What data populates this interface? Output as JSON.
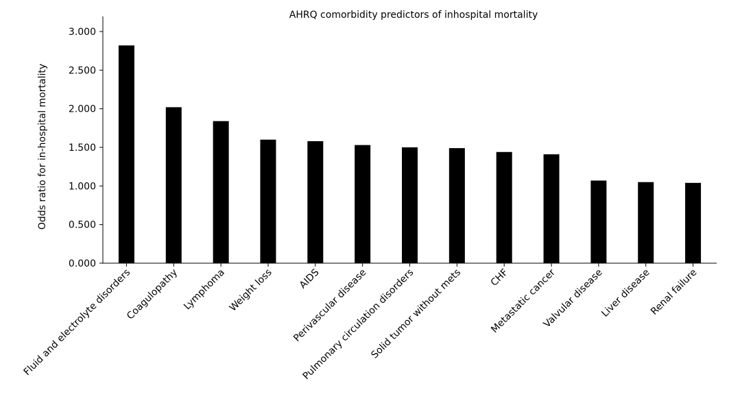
{
  "chart_data": {
    "type": "bar",
    "title": "AHRQ comorbidity predictors of inhospital mortality",
    "xlabel": "",
    "ylabel": "Odds ratio for in-hospital mortality",
    "ylim": [
      0,
      3.0
    ],
    "yticks": [
      "0.000",
      "0.500",
      "1.000",
      "1.500",
      "2.000",
      "2.500",
      "3.000"
    ],
    "ytick_values": [
      0,
      0.5,
      1.0,
      1.5,
      2.0,
      2.5,
      3.0
    ],
    "grid": false,
    "legend": "none",
    "bar_color": "#000000",
    "categories": [
      "Fluid and electrolyte disorders",
      "Coagulopathy",
      "Lymphoma",
      "Weight loss",
      "AIDS",
      "Perivascular disease",
      "Pulmonary circulation disorders",
      "Solid tumor without mets",
      "CHF",
      "Metastatic cancer",
      "Valvular disease",
      "Liver disease",
      "Renal failure"
    ],
    "values": [
      2.82,
      2.02,
      1.84,
      1.6,
      1.58,
      1.53,
      1.5,
      1.49,
      1.44,
      1.41,
      1.07,
      1.05,
      1.04
    ]
  }
}
